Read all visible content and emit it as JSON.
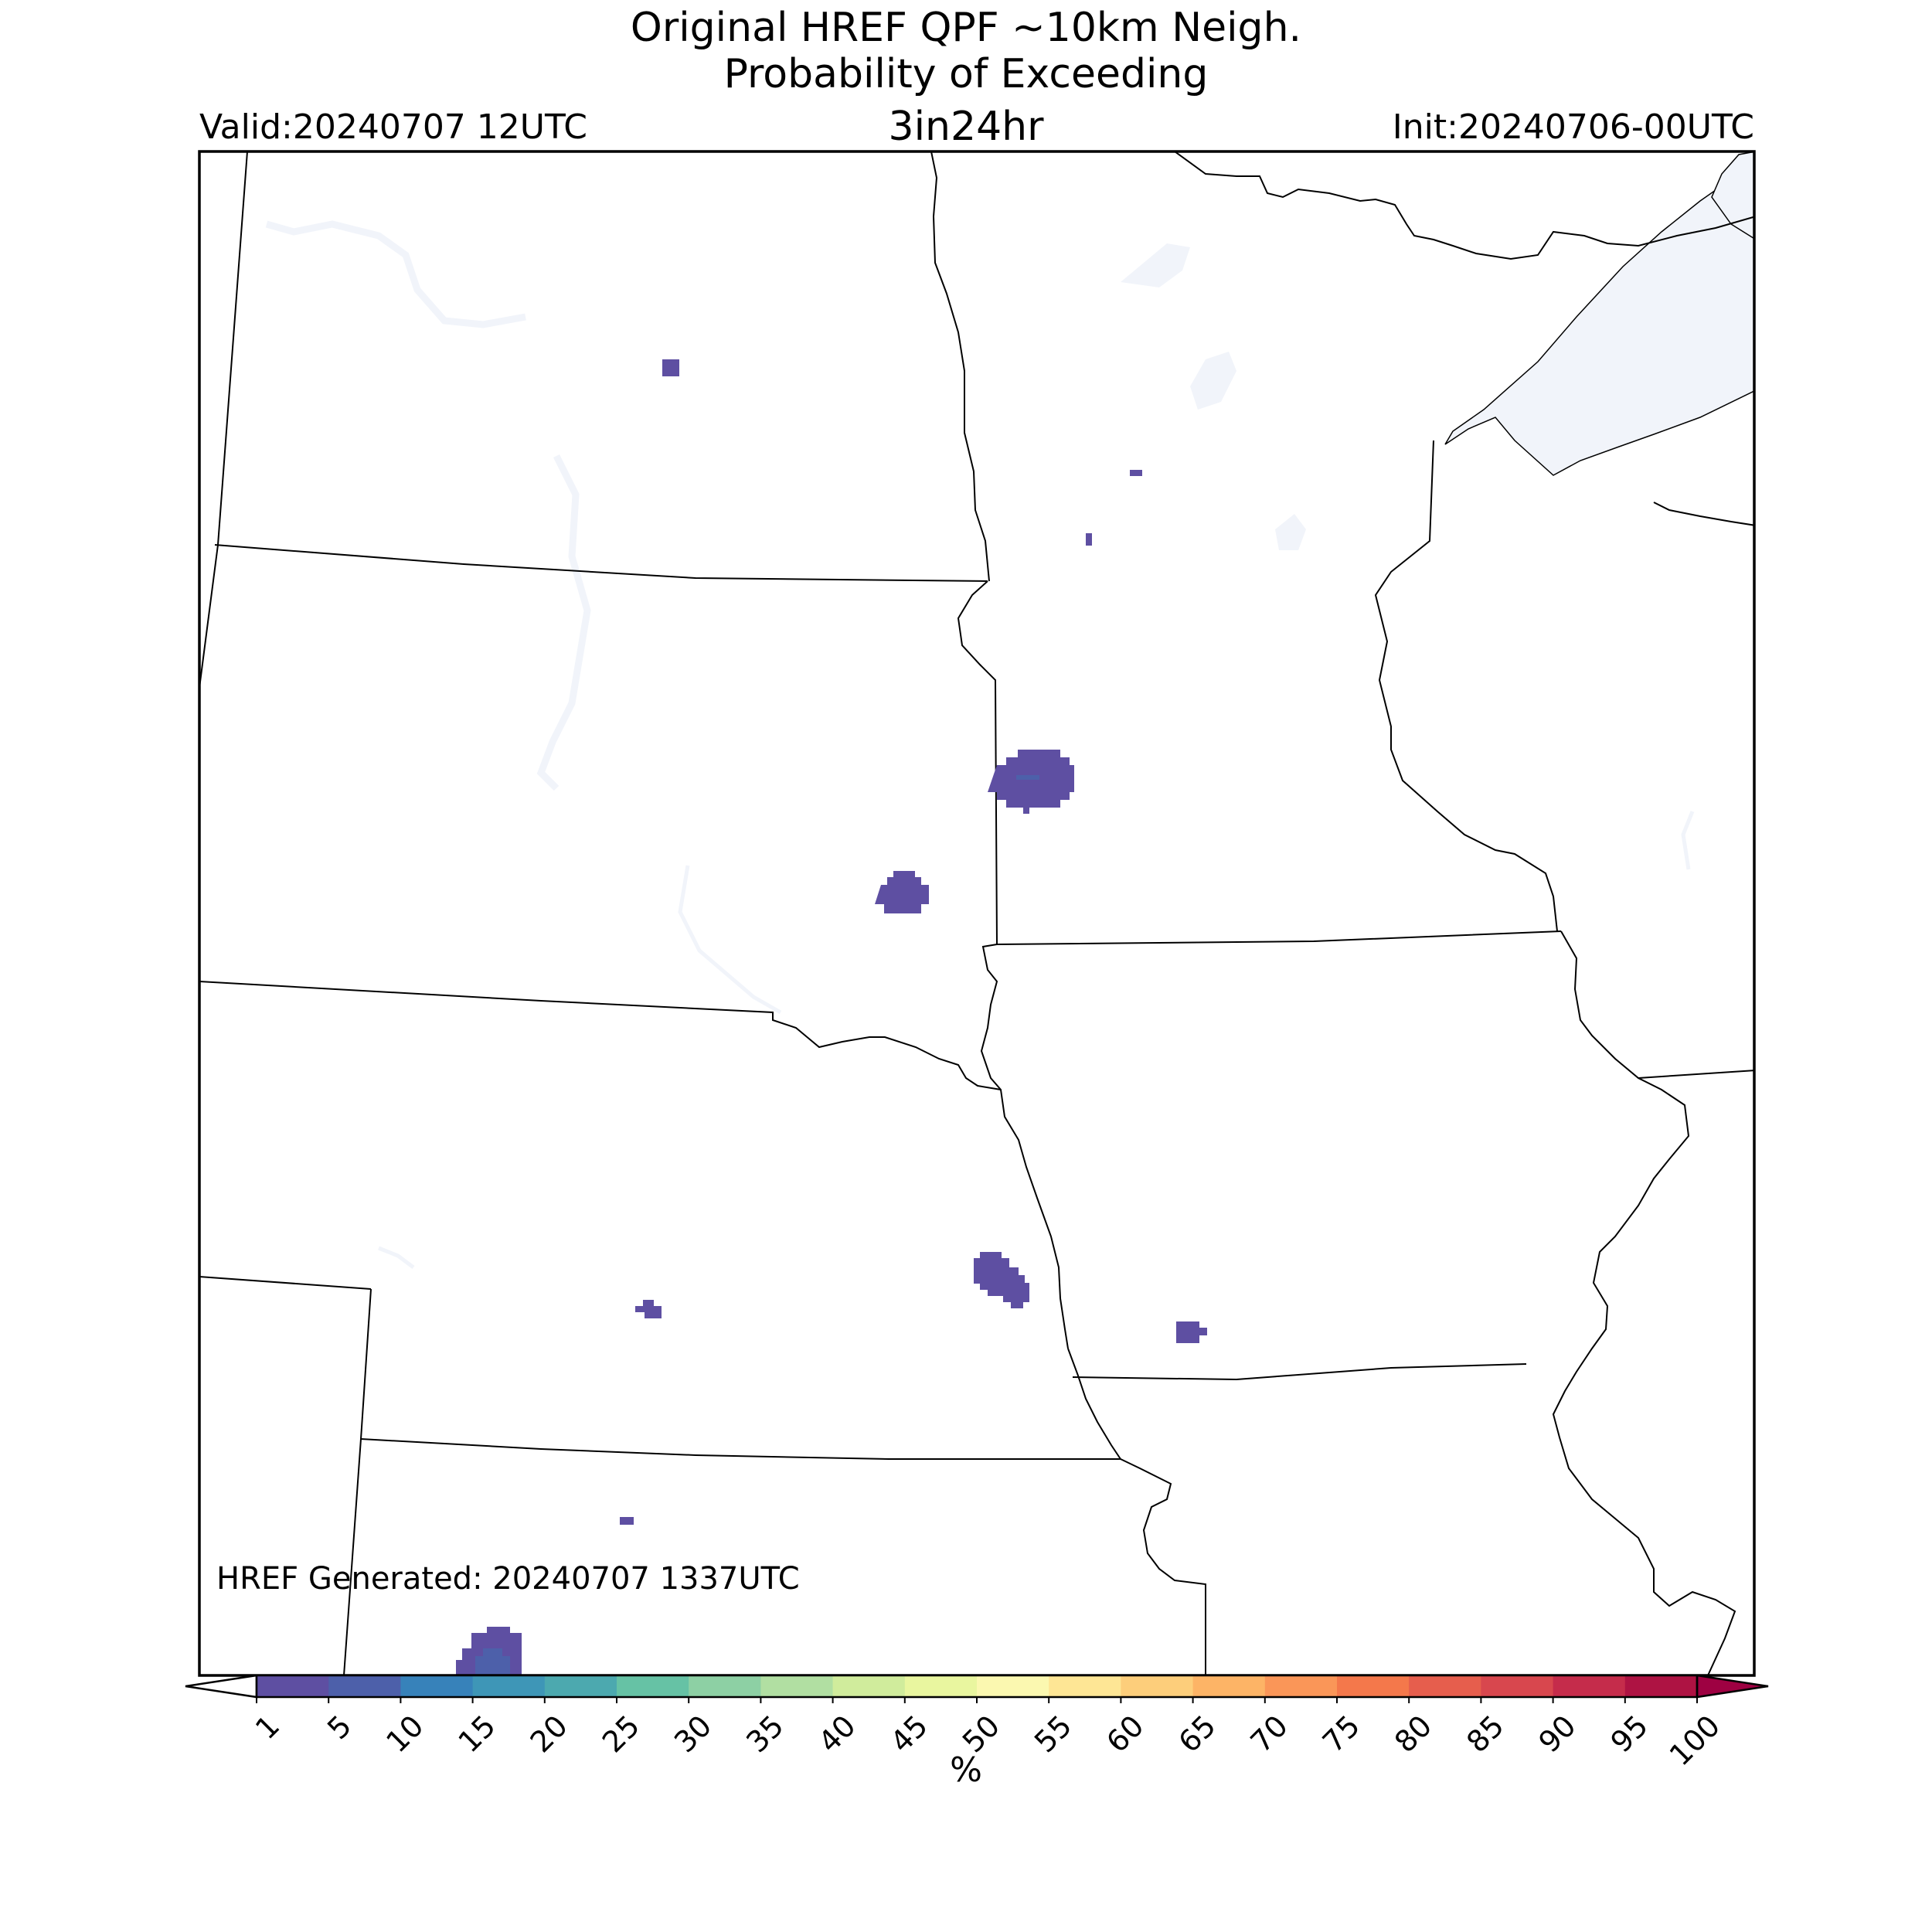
{
  "title": {
    "line1": "Original HREF QPF ~10km Neigh.",
    "line2": "Probability of Exceeding",
    "line3": "3in24hr"
  },
  "valid_label": "Valid:20240707 12UTC",
  "init_label": "Init:20240706-00UTC",
  "generated_label": "HREF Generated: 20240707 1337UTC",
  "colorbar": {
    "unit": "%",
    "levels": [
      "1",
      "5",
      "10",
      "15",
      "20",
      "25",
      "30",
      "35",
      "40",
      "45",
      "50",
      "55",
      "60",
      "65",
      "70",
      "75",
      "80",
      "85",
      "90",
      "95",
      "100"
    ],
    "colors": [
      "#5e4fa2",
      "#4d60aa",
      "#3782ba",
      "#3e96b7",
      "#4ca9af",
      "#66c2a5",
      "#8dd0a4",
      "#b1dfa2",
      "#d0ec9c",
      "#e9f69f",
      "#fbf8b0",
      "#fee695",
      "#fdce7b",
      "#fdb466",
      "#fa9658",
      "#f4784b",
      "#e65e4d",
      "#d8474e",
      "#c52c4b",
      "#ae1343",
      "#9e0142"
    ]
  },
  "palette": {
    "water": "#f1f4fa",
    "boundary": "#000000",
    "prob_1_5": "#5e4fa2",
    "prob_5_10": "#4d60aa"
  }
}
